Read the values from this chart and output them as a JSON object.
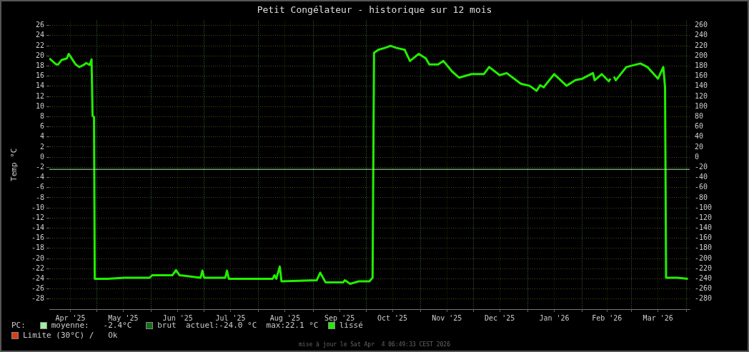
{
  "chart_data": {
    "type": "line",
    "title": "Petit Congélateur - historique sur 12 mois",
    "ylabel": "Temp °C",
    "xlim": [
      "2025-04-04",
      "2026-04-03"
    ],
    "xticks": [
      {
        "value": "2025-04-16",
        "label": "Apr '25"
      },
      {
        "value": "2025-05-01",
        "label": null
      },
      {
        "value": "2025-05-16",
        "label": "May '25"
      },
      {
        "value": "2025-06-01",
        "label": null
      },
      {
        "value": "2025-06-16",
        "label": "Jun '25"
      },
      {
        "value": "2025-07-01",
        "label": null
      },
      {
        "value": "2025-07-16",
        "label": "Jul '25"
      },
      {
        "value": "2025-08-01",
        "label": null
      },
      {
        "value": "2025-08-16",
        "label": "Aug '25"
      },
      {
        "value": "2025-09-01",
        "label": null
      },
      {
        "value": "2025-09-16",
        "label": "Sep '25"
      },
      {
        "value": "2025-10-01",
        "label": null
      },
      {
        "value": "2025-10-16",
        "label": "Oct '25"
      },
      {
        "value": "2025-11-01",
        "label": null
      },
      {
        "value": "2025-11-16",
        "label": "Nov '25"
      },
      {
        "value": "2025-12-01",
        "label": null
      },
      {
        "value": "2025-12-16",
        "label": "Dec '25"
      },
      {
        "value": "2026-01-01",
        "label": null
      },
      {
        "value": "2026-01-16",
        "label": "Jan '26"
      },
      {
        "value": "2026-02-01",
        "label": null
      },
      {
        "value": "2026-02-15",
        "label": "Feb '26"
      },
      {
        "value": "2026-03-01",
        "label": null
      },
      {
        "value": "2026-03-16",
        "label": "Mar '26"
      },
      {
        "value": "2026-04-01",
        "label": null
      }
    ],
    "ylim": [
      -30,
      27
    ],
    "yticks": [
      -28,
      -26,
      -24,
      -22,
      -20,
      -18,
      -16,
      -14,
      -12,
      -10,
      -8,
      -6,
      -4,
      -2,
      0,
      2,
      4,
      6,
      8,
      10,
      12,
      14,
      16,
      18,
      20,
      22,
      24,
      26
    ],
    "y2lim": [
      -300,
      270
    ],
    "y2ticks": [
      -280,
      -260,
      -240,
      -220,
      -200,
      -180,
      -160,
      -140,
      -120,
      -100,
      -80,
      -60,
      -40,
      -20,
      0,
      20,
      40,
      60,
      80,
      100,
      120,
      140,
      160,
      180,
      200,
      220,
      240,
      260
    ],
    "grid": true,
    "legend": "bottom",
    "marker": "none",
    "line_style": "solid",
    "ref_lines": [
      {
        "axis": "y",
        "value": -2.4,
        "label": "moyenne:   -2.4°C",
        "color": "#a0f0a0"
      }
    ],
    "series": [
      {
        "name": "brut",
        "color": "#1a6e1a"
      },
      {
        "name": "lissé",
        "color": "#22ee00",
        "x": [
          "2025-04-04",
          "2025-04-08",
          "2025-04-09",
          "2025-04-11",
          "2025-04-14",
          "2025-04-15",
          "2025-04-19",
          "2025-04-21",
          "2025-04-23",
          "2025-04-25",
          "2025-04-27",
          "2025-04-28",
          "2025-04-28T14:00",
          "2025-04-29T10:00",
          "2025-04-29T20:00",
          "2025-05-07",
          "2025-05-17",
          "2025-05-31",
          "2025-06-01T12:00",
          "2025-06-13",
          "2025-06-15",
          "2025-06-17",
          "2025-06-29",
          "2025-06-30",
          "2025-07-01",
          "2025-07-13",
          "2025-07-14",
          "2025-07-15",
          "2025-07-31",
          "2025-08-09",
          "2025-08-10",
          "2025-08-11",
          "2025-08-13",
          "2025-08-14",
          "2025-09-03",
          "2025-09-05",
          "2025-09-08",
          "2025-09-18",
          "2025-09-19",
          "2025-09-22",
          "2025-09-27",
          "2025-10-03",
          "2025-10-04T18:00",
          "2025-10-05T14:00",
          "2025-10-08",
          "2025-10-12",
          "2025-10-15",
          "2025-10-18",
          "2025-10-23",
          "2025-10-26",
          "2025-10-31",
          "2025-11-04",
          "2025-11-06",
          "2025-11-11",
          "2025-11-14",
          "2025-11-19",
          "2025-11-23",
          "2025-11-30",
          "2025-12-07",
          "2025-12-10",
          "2025-12-16",
          "2025-12-20",
          "2025-12-28",
          "2026-01-02",
          "2026-01-06",
          "2026-01-08",
          "2026-01-10",
          "2026-01-16",
          "2026-01-23",
          "2026-01-28",
          "2026-02-01",
          "2026-02-07",
          "2026-02-08",
          "2026-02-12",
          "2026-02-16",
          "2026-02-17",
          "2026-02-18",
          "2026-02-19",
          "2026-02-20",
          "2026-02-26",
          "2026-03-06",
          "2026-03-10",
          "2026-03-16",
          "2026-03-19",
          "2026-03-20",
          "2026-03-20T14:00",
          "2026-03-27",
          "2026-04-02"
        ],
        "values": [
          19.5,
          18.3,
          18.3,
          19.2,
          19.5,
          20.4,
          18.3,
          17.8,
          18.1,
          18.6,
          18.2,
          19.3,
          8.2,
          7.9,
          -24.0,
          -24.0,
          -23.8,
          -23.8,
          -23.3,
          -23.3,
          -22.3,
          -23.3,
          -23.8,
          -22.4,
          -23.8,
          -23.8,
          -22.4,
          -24.0,
          -24.0,
          -24.0,
          -23.3,
          -24.0,
          -21.6,
          -24.5,
          -24.3,
          -22.8,
          -24.7,
          -24.7,
          -24.3,
          -25.0,
          -24.5,
          -24.5,
          -23.8,
          20.6,
          21.2,
          21.6,
          22.0,
          21.6,
          21.2,
          19.0,
          20.4,
          19.5,
          18.3,
          18.3,
          19.0,
          16.9,
          15.7,
          16.4,
          16.4,
          17.8,
          16.2,
          16.6,
          14.5,
          14.1,
          13.1,
          14.2,
          13.8,
          16.4,
          14.1,
          15.2,
          15.5,
          16.6,
          15.2,
          16.4,
          15.0,
          15.5,
          null,
          15.9,
          15.2,
          17.8,
          18.5,
          17.8,
          15.5,
          17.8,
          13.8,
          -23.8,
          -23.8,
          -24.0
        ]
      }
    ],
    "annotations": [
      "PC:",
      "actuel:-24.0 °C  max:22.1 °C",
      "Limite (30°C) /   Ok",
      "mise à jour le Sat Apr  4 06:49:33 CEST 2026"
    ]
  }
}
